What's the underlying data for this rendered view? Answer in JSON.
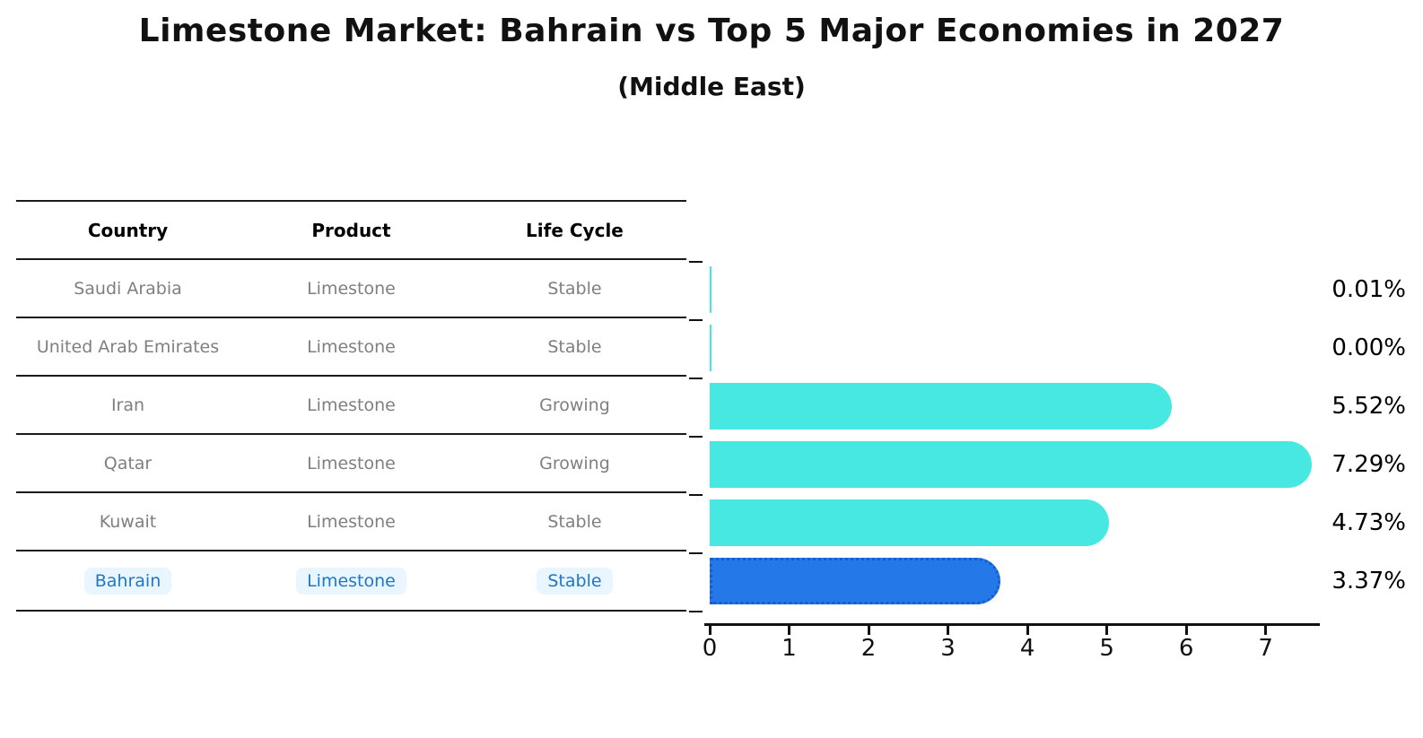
{
  "header": {
    "title": "Limestone Market: Bahrain vs Top 5 Major Economies in 2027",
    "subtitle": "(Middle East)"
  },
  "table": {
    "headers": [
      "Country",
      "Product",
      "Life Cycle"
    ],
    "rows": [
      {
        "country": "Saudi Arabia",
        "product": "Limestone",
        "life_cycle": "Stable",
        "share": "0.01%",
        "value": 0.01,
        "highlight": false
      },
      {
        "country": "United Arab Emirates",
        "product": "Limestone",
        "life_cycle": "Stable",
        "share": "0.00%",
        "value": 0.0,
        "highlight": false
      },
      {
        "country": "Iran",
        "product": "Limestone",
        "life_cycle": "Growing",
        "share": "5.52%",
        "value": 5.52,
        "highlight": false
      },
      {
        "country": "Qatar",
        "product": "Limestone",
        "life_cycle": "Growing",
        "share": "7.29%",
        "value": 7.29,
        "highlight": false
      },
      {
        "country": "Kuwait",
        "product": "Limestone",
        "life_cycle": "Stable",
        "share": "4.73%",
        "value": 4.73,
        "highlight": false
      },
      {
        "country": "Bahrain",
        "product": "Limestone",
        "life_cycle": "Stable",
        "share": "3.37%",
        "value": 3.37,
        "highlight": true
      }
    ]
  },
  "chart_data": {
    "type": "bar",
    "orientation": "horizontal",
    "title": "Limestone Market: Bahrain vs Top 5 Major Economies in 2027",
    "subtitle": "(Middle East)",
    "categories": [
      "Saudi Arabia",
      "United Arab Emirates",
      "Iran",
      "Qatar",
      "Kuwait",
      "Bahrain"
    ],
    "values": [
      0.01,
      0.0,
      5.52,
      7.29,
      4.73,
      3.37
    ],
    "data_labels": [
      "0.01%",
      "0.00%",
      "5.52%",
      "7.29%",
      "4.73%",
      "3.37%"
    ],
    "xlabel": "",
    "ylabel": "",
    "xlim": [
      0,
      7.67
    ],
    "x_ticks": [
      "0",
      "1",
      "2",
      "3",
      "4",
      "5",
      "6",
      "7"
    ],
    "grid": "off",
    "legend": "none",
    "bar_color": "#48E8E2",
    "highlight_color": "#2478E8",
    "highlight_category": "Bahrain",
    "highlight_style": "dotted-border"
  },
  "colors": {
    "title_text": "#111111",
    "muted_row_text": "#7f7f7f",
    "highlight_text": "#1d78c8",
    "axis": "#111111"
  }
}
